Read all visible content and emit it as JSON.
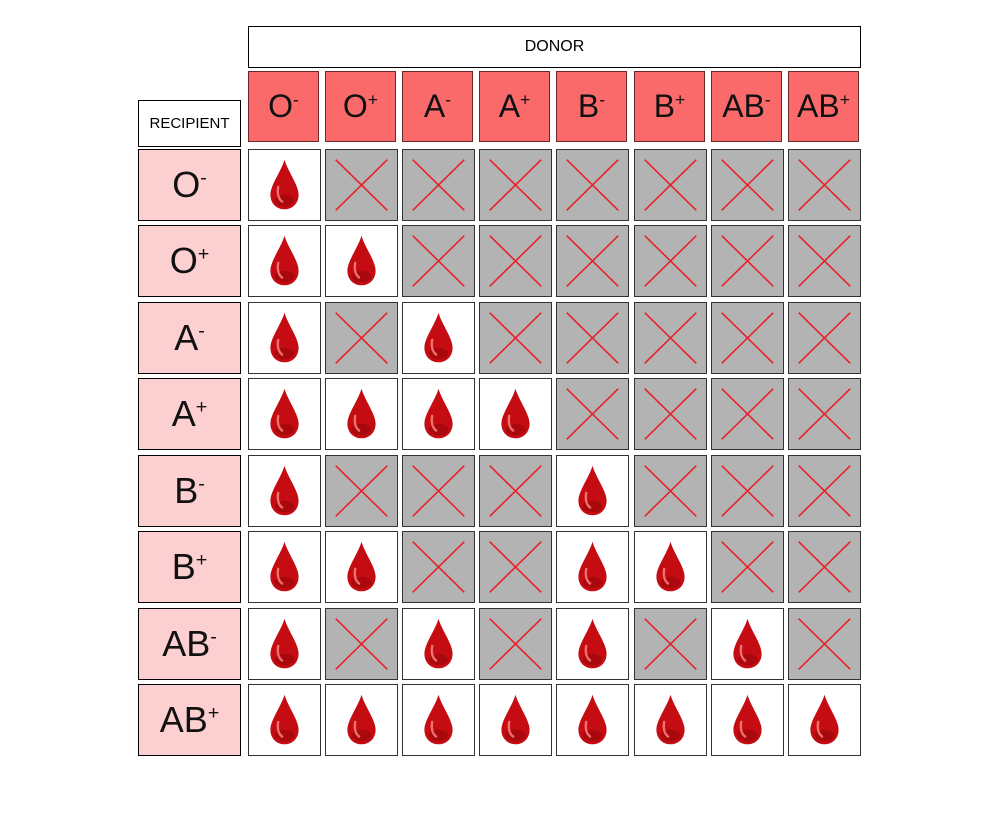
{
  "header": {
    "donor_label": "DONOR",
    "recipient_label": "RECIPIENT"
  },
  "blood_types": [
    {
      "base": "O",
      "sign": "-"
    },
    {
      "base": "O",
      "sign": "+"
    },
    {
      "base": "A",
      "sign": "-"
    },
    {
      "base": "A",
      "sign": "+"
    },
    {
      "base": "B",
      "sign": "-"
    },
    {
      "base": "B",
      "sign": "+"
    },
    {
      "base": "AB",
      "sign": "-"
    },
    {
      "base": "AB",
      "sign": "+"
    }
  ],
  "compatibility": [
    [
      1,
      0,
      0,
      0,
      0,
      0,
      0,
      0
    ],
    [
      1,
      1,
      0,
      0,
      0,
      0,
      0,
      0
    ],
    [
      1,
      0,
      1,
      0,
      0,
      0,
      0,
      0
    ],
    [
      1,
      1,
      1,
      1,
      0,
      0,
      0,
      0
    ],
    [
      1,
      0,
      0,
      0,
      1,
      0,
      0,
      0
    ],
    [
      1,
      1,
      0,
      0,
      1,
      1,
      0,
      0
    ],
    [
      1,
      0,
      1,
      0,
      1,
      0,
      1,
      0
    ],
    [
      1,
      1,
      1,
      1,
      1,
      1,
      1,
      1
    ]
  ],
  "colors": {
    "donor_header": "#fb6a6a",
    "recipient_header": "#fcd0d0",
    "incompatible_bg": "#b3b3b3",
    "cross": "#e8202a",
    "drop": "#c40c12"
  },
  "icons": {
    "compatible": "blood-drop-icon",
    "incompatible": "cross-icon"
  }
}
